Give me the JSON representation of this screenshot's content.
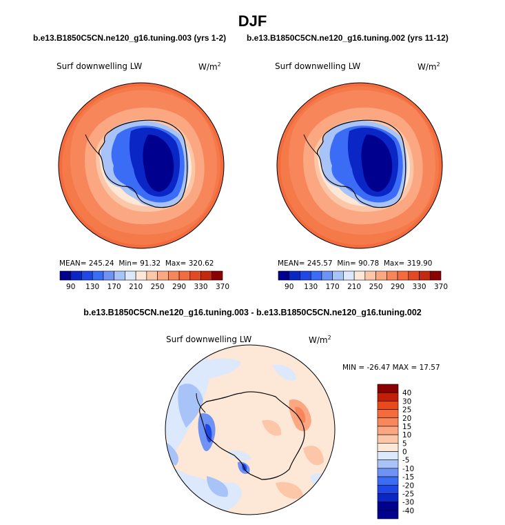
{
  "title": "DJF",
  "panels": [
    {
      "case": "b.e13.B1850C5CN.ne120_g16.tuning.003 (yrs 1-2)",
      "variable": "Surf downwelling LW",
      "units": "W/m",
      "units_exp": "2",
      "stats": {
        "mean_label": "MEAN=",
        "mean": "245.24",
        "min_label": "Min=",
        "min": "91.32",
        "max_label": "Max=",
        "max": "320.62"
      }
    },
    {
      "case": "b.e13.B1850C5CN.ne120_g16.tuning.002 (yrs 11-12)",
      "variable": "Surf downwelling LW",
      "units": "W/m",
      "units_exp": "2",
      "stats": {
        "mean_label": "MEAN=",
        "mean": "245.57",
        "min_label": "Min=",
        "min": "90.78",
        "max_label": "Max=",
        "max": "319.90"
      }
    }
  ],
  "difference": {
    "title": "b.e13.B1850C5CN.ne120_g16.tuning.003 - b.e13.B1850C5CN.ne120_g16.tuning.002",
    "variable": "Surf downwelling LW",
    "units": "W/m",
    "units_exp": "2",
    "minmax": "MIN = -26.47  MAX =  17.57"
  },
  "colorbars": {
    "abs_labels": [
      "90",
      "130",
      "170",
      "210",
      "250",
      "290",
      "330",
      "370"
    ],
    "abs_colors": [
      "#00008f",
      "#0a26c4",
      "#1f47e6",
      "#3b6cf5",
      "#6f93f5",
      "#a8c3f8",
      "#dce8fb",
      "#fde7d6",
      "#fcc7a8",
      "#fba882",
      "#f8865b",
      "#f46b3e",
      "#e24a25",
      "#c3290e",
      "#8b0000"
    ],
    "diff_labels": [
      "40",
      "30",
      "25",
      "20",
      "15",
      "10",
      "5",
      "0",
      "-5",
      "-10",
      "-15",
      "-20",
      "-25",
      "-30",
      "-40"
    ],
    "diff_colors": [
      "#8b0000",
      "#c21f0a",
      "#e84a1d",
      "#f56b3c",
      "#f8875c",
      "#fba882",
      "#fcc7a8",
      "#fde7d6",
      "#dce8fb",
      "#a8c3f8",
      "#6f93f5",
      "#3b6cf5",
      "#1f47e6",
      "#0a26c4",
      "#00008f"
    ]
  }
}
